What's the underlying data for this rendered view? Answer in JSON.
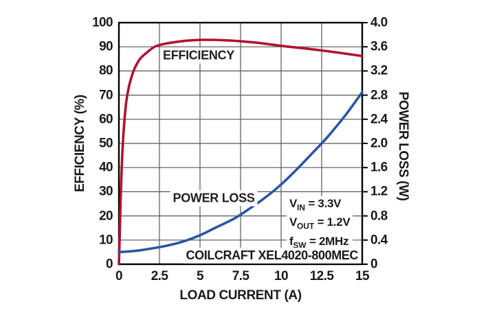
{
  "axes": {
    "x": {
      "title": "LOAD CURRENT (A)",
      "ticks": [
        "0",
        "2.5",
        "5",
        "7.5",
        "10",
        "12.5",
        "15"
      ]
    },
    "y_left": {
      "title": "EFFICIENCY (%)",
      "ticks": [
        "100",
        "90",
        "80",
        "70",
        "60",
        "50",
        "40",
        "30",
        "20",
        "10",
        "0"
      ]
    },
    "y_right": {
      "title": "POWER LOSS (W)",
      "ticks": [
        "4.0",
        "3.6",
        "3.2",
        "2.8",
        "2.4",
        "2.0",
        "1.6",
        "1.2",
        "0.8",
        "0.4",
        "0"
      ]
    }
  },
  "curve_labels": {
    "efficiency": "EFFICIENCY",
    "power_loss": "POWER LOSS"
  },
  "annotations": {
    "conditions": [
      {
        "pre": "V",
        "sub": "IN",
        "post": " = 3.3V"
      },
      {
        "pre": "V",
        "sub": "OUT",
        "post": " = 1.2V"
      },
      {
        "pre": "f",
        "sub": "SW",
        "post": " = 2MHz"
      }
    ],
    "part": "COILCRAFT XEL4020-800MEC"
  },
  "colors": {
    "efficiency": "#b01232",
    "power_loss": "#2a55a4",
    "grid": "#555555",
    "axis": "#000000",
    "text": "#1a1a1a",
    "background": "#ffffff"
  },
  "chart_data": {
    "type": "line",
    "title": "",
    "xlabel": "LOAD CURRENT (A)",
    "ylabel_left": "EFFICIENCY (%)",
    "ylabel_right": "POWER LOSS (W)",
    "xlim": [
      0,
      15
    ],
    "ylim_left": [
      0,
      100
    ],
    "ylim_right": [
      0,
      4.0
    ],
    "x_ticks": [
      0,
      2.5,
      5,
      7.5,
      10,
      12.5,
      15
    ],
    "y_left_ticks": [
      0,
      10,
      20,
      30,
      40,
      50,
      60,
      70,
      80,
      90,
      100
    ],
    "y_right_ticks": [
      0,
      0.4,
      0.8,
      1.2,
      1.6,
      2.0,
      2.4,
      2.8,
      3.2,
      3.6,
      4.0
    ],
    "grid": true,
    "legend_position": "inline-labels",
    "series": [
      {
        "name": "EFFICIENCY",
        "axis": "left",
        "color": "#b01232",
        "x": [
          0,
          0.05,
          0.1,
          0.2,
          0.3,
          0.45,
          0.6,
          0.8,
          1.0,
          1.3,
          1.7,
          2.2,
          2.8,
          3.5,
          4.5,
          5.5,
          6.5,
          7.5,
          8.5,
          10,
          11.5,
          12.5,
          13.5,
          15
        ],
        "y": [
          0,
          12,
          26,
          44,
          56,
          67,
          73,
          78,
          81.5,
          85,
          87.5,
          90,
          91.2,
          92,
          92.7,
          92.9,
          92.7,
          92.3,
          91.7,
          90.4,
          89.3,
          88.5,
          87.6,
          86.2
        ]
      },
      {
        "name": "POWER LOSS",
        "axis": "right",
        "color": "#2a55a4",
        "x": [
          0,
          1,
          2,
          3,
          4,
          5,
          6,
          7,
          7.5,
          8,
          9,
          10,
          11,
          12,
          12.5,
          13,
          14,
          15
        ],
        "y": [
          0.2,
          0.22,
          0.26,
          0.31,
          0.38,
          0.48,
          0.61,
          0.74,
          0.82,
          0.91,
          1.1,
          1.32,
          1.58,
          1.86,
          2.0,
          2.15,
          2.48,
          2.85
        ]
      }
    ],
    "annotations": [
      "VIN = 3.3V",
      "VOUT = 1.2V",
      "fSW = 2MHz",
      "COILCRAFT XEL4020-800MEC"
    ]
  }
}
